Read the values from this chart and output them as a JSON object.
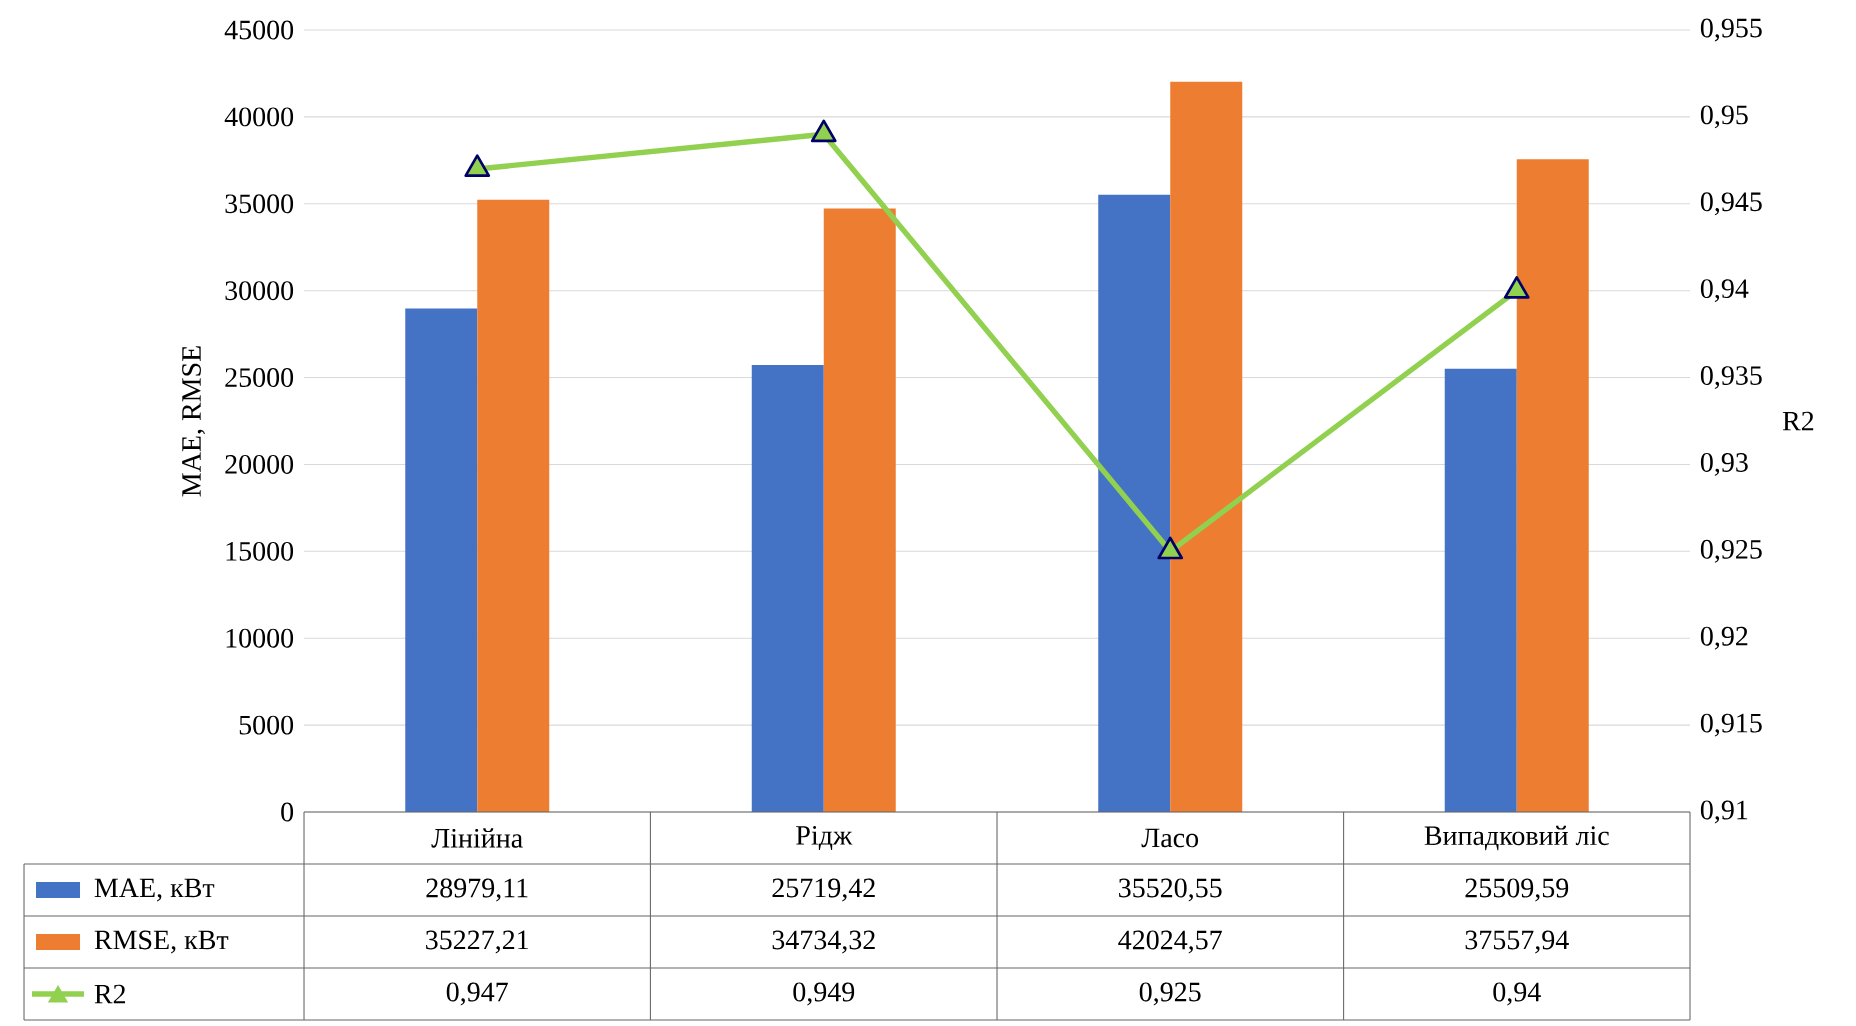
{
  "chart_data": {
    "type": "bar",
    "categories": [
      "Лінійна",
      "Рідж",
      "Ласо",
      "Випадковий ліс"
    ],
    "ylabel": "MAE, RMSE",
    "y2label": "R2",
    "ylim": [
      0,
      45000
    ],
    "yticks": [
      0,
      5000,
      10000,
      15000,
      20000,
      25000,
      30000,
      35000,
      40000,
      45000
    ],
    "y2lim": [
      0.91,
      0.955
    ],
    "y2ticks": [
      {
        "value": 0.91,
        "label": "0,91"
      },
      {
        "value": 0.915,
        "label": "0,915"
      },
      {
        "value": 0.92,
        "label": "0,92"
      },
      {
        "value": 0.925,
        "label": "0,925"
      },
      {
        "value": 0.93,
        "label": "0,93"
      },
      {
        "value": 0.935,
        "label": "0,935"
      },
      {
        "value": 0.94,
        "label": "0,94"
      },
      {
        "value": 0.945,
        "label": "0,945"
      },
      {
        "value": 0.95,
        "label": "0,95"
      },
      {
        "value": 0.955,
        "label": "0,955"
      }
    ],
    "grid": "y",
    "legend": "bottom",
    "series": [
      {
        "name": "MAE, кВт",
        "color": "#4472c4",
        "values": [
          28979.11,
          25719.42,
          35520.55,
          25509.59
        ],
        "value_labels": [
          "28979,11",
          "25719,42",
          "35520,55",
          "25509,59"
        ]
      },
      {
        "name": "RMSE, кВт",
        "color": "#ed7d31",
        "values": [
          35227.21,
          34734.32,
          42024.57,
          37557.94
        ],
        "value_labels": [
          "35227,21",
          "34734,32",
          "42024,57",
          "37557,94"
        ]
      },
      {
        "name": "R2",
        "type": "line",
        "axis": "y2",
        "marker": "triangle",
        "color": "#92d050",
        "values": [
          0.947,
          0.949,
          0.925,
          0.94
        ],
        "value_labels": [
          "0,947",
          "0,949",
          "0,925",
          "0,94"
        ]
      }
    ]
  }
}
